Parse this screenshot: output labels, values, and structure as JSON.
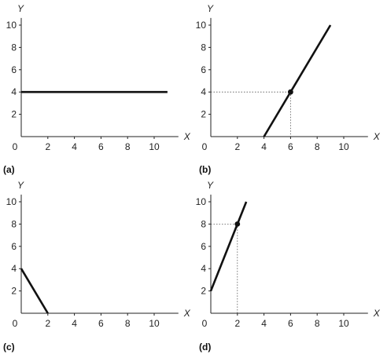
{
  "chart_data": [
    {
      "type": "line",
      "panel_label": "(a)",
      "xlabel": "X",
      "ylabel": "Y",
      "xlim": [
        0,
        12
      ],
      "ylim": [
        0,
        10.5
      ],
      "xticks": [
        "0",
        "2",
        "4",
        "6",
        "8",
        "10"
      ],
      "yticks": [
        "2",
        "4",
        "6",
        "8",
        "10"
      ],
      "grid": false,
      "series": [
        {
          "x": [
            0,
            11
          ],
          "y": [
            4,
            4
          ]
        }
      ],
      "highlight": null
    },
    {
      "type": "line",
      "panel_label": "(b)",
      "xlabel": "X",
      "ylabel": "Y",
      "xlim": [
        0,
        12
      ],
      "ylim": [
        0,
        10.5
      ],
      "xticks": [
        "0",
        "2",
        "4",
        "6",
        "8",
        "10"
      ],
      "yticks": [
        "2",
        "4",
        "6",
        "8",
        "10"
      ],
      "grid": false,
      "series": [
        {
          "x": [
            4,
            9
          ],
          "y": [
            0,
            10
          ]
        }
      ],
      "highlight": {
        "x": 6,
        "y": 4
      }
    },
    {
      "type": "line",
      "panel_label": "(c)",
      "xlabel": "X",
      "ylabel": "Y",
      "xlim": [
        0,
        12
      ],
      "ylim": [
        0,
        10.5
      ],
      "xticks": [
        "0",
        "2",
        "4",
        "6",
        "8",
        "10"
      ],
      "yticks": [
        "2",
        "4",
        "6",
        "8",
        "10"
      ],
      "grid": false,
      "series": [
        {
          "x": [
            0,
            2
          ],
          "y": [
            4,
            0
          ]
        }
      ],
      "highlight": null
    },
    {
      "type": "line",
      "panel_label": "(d)",
      "xlabel": "X",
      "ylabel": "Y",
      "xlim": [
        0,
        12
      ],
      "ylim": [
        0,
        10.5
      ],
      "xticks": [
        "0",
        "2",
        "4",
        "6",
        "8",
        "10"
      ],
      "yticks": [
        "2",
        "4",
        "6",
        "8",
        "10"
      ],
      "grid": false,
      "series": [
        {
          "x": [
            0,
            2.67
          ],
          "y": [
            2,
            10
          ]
        }
      ],
      "highlight": {
        "x": 2,
        "y": 8
      }
    }
  ]
}
